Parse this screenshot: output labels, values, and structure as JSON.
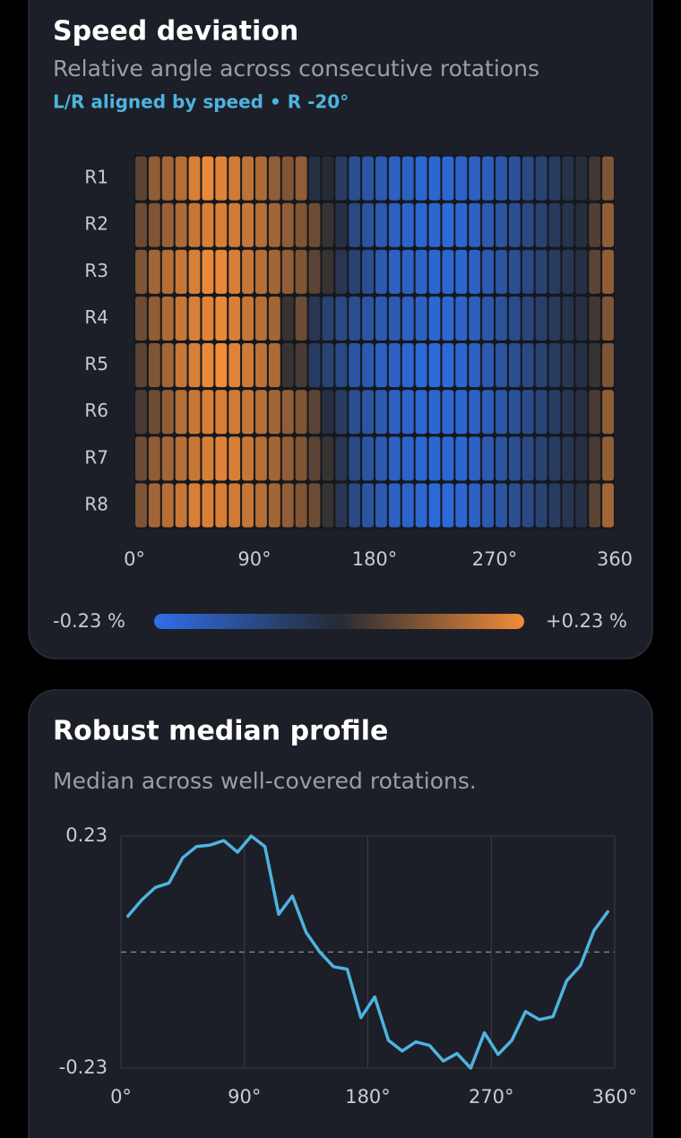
{
  "chart_data": [
    {
      "type": "heatmap",
      "title": "Speed deviation",
      "subtitle": "Relative angle across consecutive rotations",
      "annotation": "L/R aligned by speed • R -20°",
      "rows": [
        "R1",
        "R2",
        "R3",
        "R4",
        "R5",
        "R6",
        "R7",
        "R8"
      ],
      "xlim": [
        0,
        360
      ],
      "xticks": [
        {
          "value": 0,
          "label": "0°"
        },
        {
          "value": 90,
          "label": "90°"
        },
        {
          "value": 180,
          "label": "180°"
        },
        {
          "value": 270,
          "label": "270°"
        },
        360
      ],
      "zlim": [
        -0.23,
        0.23
      ],
      "zticks": [
        {
          "value": -0.23,
          "label": "-0.23 %"
        },
        {
          "value": 0.23,
          "label": "+0.23 %"
        }
      ],
      "colors": {
        "negative": "#2f6fe8",
        "neutral": "#262a33",
        "positive": "#f28c38"
      },
      "values": [
        [
          0.06,
          0.12,
          0.14,
          0.16,
          0.2,
          0.22,
          0.21,
          0.19,
          0.17,
          0.15,
          0.12,
          0.1,
          0.12,
          -0.02,
          0.0,
          -0.06,
          -0.12,
          -0.14,
          -0.16,
          -0.18,
          -0.18,
          -0.2,
          -0.2,
          -0.2,
          -0.19,
          -0.18,
          -0.17,
          -0.15,
          -0.13,
          -0.1,
          -0.08,
          -0.06,
          -0.03,
          -0.01,
          0.03,
          0.1
        ],
        [
          0.08,
          0.1,
          0.13,
          0.15,
          0.18,
          0.2,
          0.2,
          0.19,
          0.18,
          0.16,
          0.14,
          0.12,
          0.1,
          0.08,
          0.02,
          -0.02,
          -0.1,
          -0.14,
          -0.16,
          -0.18,
          -0.19,
          -0.2,
          -0.2,
          -0.21,
          -0.2,
          -0.18,
          -0.16,
          -0.14,
          -0.12,
          -0.1,
          -0.08,
          -0.05,
          -0.03,
          -0.01,
          0.05,
          0.12
        ],
        [
          0.1,
          0.14,
          0.16,
          0.18,
          0.2,
          0.22,
          0.22,
          0.2,
          0.18,
          0.16,
          0.14,
          0.12,
          0.1,
          0.06,
          0.02,
          -0.04,
          -0.08,
          -0.12,
          -0.16,
          -0.18,
          -0.18,
          -0.19,
          -0.2,
          -0.2,
          -0.2,
          -0.18,
          -0.16,
          -0.14,
          -0.12,
          -0.1,
          -0.08,
          -0.06,
          -0.04,
          -0.02,
          0.06,
          0.12
        ],
        [
          0.08,
          0.12,
          0.15,
          0.18,
          0.2,
          0.21,
          0.22,
          0.2,
          0.18,
          0.16,
          0.14,
          0.02,
          0.08,
          -0.04,
          -0.08,
          -0.1,
          -0.12,
          -0.14,
          -0.16,
          -0.16,
          -0.18,
          -0.18,
          -0.2,
          -0.2,
          -0.19,
          -0.17,
          -0.15,
          -0.13,
          -0.11,
          -0.09,
          -0.07,
          -0.05,
          -0.03,
          -0.02,
          0.03,
          0.1
        ],
        [
          0.06,
          0.1,
          0.14,
          0.18,
          0.2,
          0.22,
          0.23,
          0.21,
          0.19,
          0.17,
          0.15,
          0.02,
          0.04,
          -0.06,
          -0.08,
          -0.1,
          -0.14,
          -0.16,
          -0.18,
          -0.18,
          -0.2,
          -0.21,
          -0.21,
          -0.21,
          -0.2,
          -0.18,
          -0.16,
          -0.14,
          -0.12,
          -0.1,
          -0.08,
          -0.06,
          -0.04,
          -0.02,
          0.02,
          0.1
        ],
        [
          0.04,
          0.08,
          0.12,
          0.16,
          0.18,
          0.2,
          0.2,
          0.19,
          0.18,
          0.16,
          0.14,
          0.12,
          0.1,
          0.06,
          -0.02,
          -0.06,
          -0.12,
          -0.14,
          -0.16,
          -0.18,
          -0.19,
          -0.2,
          -0.2,
          -0.2,
          -0.2,
          -0.18,
          -0.17,
          -0.15,
          -0.13,
          -0.11,
          -0.09,
          -0.06,
          -0.04,
          -0.02,
          0.04,
          0.12
        ],
        [
          0.08,
          0.12,
          0.14,
          0.16,
          0.18,
          0.2,
          0.21,
          0.2,
          0.18,
          0.16,
          0.14,
          0.12,
          0.1,
          0.06,
          0.02,
          -0.04,
          -0.1,
          -0.14,
          -0.16,
          -0.18,
          -0.19,
          -0.2,
          -0.2,
          -0.2,
          -0.2,
          -0.18,
          -0.16,
          -0.14,
          -0.12,
          -0.1,
          -0.08,
          -0.06,
          -0.04,
          -0.02,
          0.04,
          0.12
        ],
        [
          0.1,
          0.14,
          0.16,
          0.18,
          0.2,
          0.2,
          0.2,
          0.19,
          0.18,
          0.16,
          0.14,
          0.12,
          0.1,
          0.08,
          0.02,
          -0.04,
          -0.1,
          -0.14,
          -0.16,
          -0.18,
          -0.19,
          -0.2,
          -0.21,
          -0.21,
          -0.2,
          -0.18,
          -0.16,
          -0.14,
          -0.12,
          -0.1,
          -0.08,
          -0.06,
          -0.04,
          -0.02,
          0.06,
          0.14
        ]
      ]
    },
    {
      "type": "line",
      "title": "Robust median profile",
      "subtitle": "Median across well-covered rotations.",
      "x": [
        5,
        15,
        25,
        35,
        45,
        55,
        65,
        75,
        85,
        95,
        105,
        115,
        125,
        135,
        145,
        155,
        165,
        175,
        185,
        195,
        205,
        215,
        225,
        235,
        245,
        255,
        265,
        275,
        285,
        295,
        305,
        315,
        325,
        335,
        345,
        355
      ],
      "values": [
        0.071,
        0.103,
        0.128,
        0.137,
        0.187,
        0.209,
        0.212,
        0.221,
        0.198,
        0.23,
        0.209,
        0.075,
        0.111,
        0.039,
        0.0,
        -0.029,
        -0.034,
        -0.13,
        -0.089,
        -0.175,
        -0.196,
        -0.178,
        -0.185,
        -0.216,
        -0.201,
        -0.23,
        -0.16,
        -0.203,
        -0.175,
        -0.118,
        -0.134,
        -0.128,
        -0.057,
        -0.027,
        0.043,
        0.08
      ],
      "color": "#4fb3e0",
      "xlim": [
        0,
        360
      ],
      "xticks": [
        {
          "value": 0,
          "label": "0°"
        },
        {
          "value": 90,
          "label": "90°"
        },
        {
          "value": 180,
          "label": "180°"
        },
        {
          "value": 270,
          "label": "270°"
        },
        {
          "value": 360,
          "label": "360°"
        }
      ],
      "ylim": [
        -0.23,
        0.23
      ],
      "yticks": [
        -0.23,
        0.23
      ],
      "grid": true,
      "reference_line": 0
    }
  ]
}
